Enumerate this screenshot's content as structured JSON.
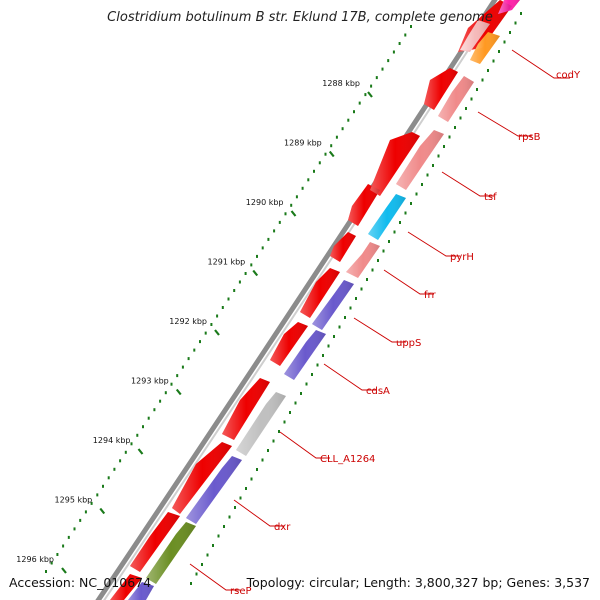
{
  "title": "Clostridium botulinum B str. Eklund 17B, complete genome",
  "footer": {
    "accession": "Accession: NC_010674",
    "topology": "Topology: circular; Length: 3,800,327 bp; Genes: 3,537"
  },
  "colors": {
    "forward": "#ee0000",
    "backbone": "#8c8c8c",
    "tick": "#1a7a1a",
    "label": "#cc0000"
  },
  "kbp_labels": [
    "1288 kbp",
    "1289 kbp",
    "1290 kbp",
    "1291 kbp",
    "1292 kbp",
    "1293 kbp",
    "1294 kbp",
    "1295 kbp",
    "1296 kbp"
  ],
  "genes": [
    {
      "name": "codY",
      "color": "#ff9922"
    },
    {
      "name": "rpsB",
      "color": "#f08a8a"
    },
    {
      "name": "tsf",
      "color": "#f08a8a"
    },
    {
      "name": "pyrH",
      "color": "#11bbee"
    },
    {
      "name": "frr",
      "color": "#f08a8a"
    },
    {
      "name": "uppS",
      "color": "#6a5acd"
    },
    {
      "name": "cdsA",
      "color": "#6a5acd"
    },
    {
      "name": "CLL_A1264",
      "color": "#c0c0c0"
    },
    {
      "name": "dxr",
      "color": "#6a5acd"
    },
    {
      "name": "rseP",
      "color": "#6b8e23"
    }
  ]
}
